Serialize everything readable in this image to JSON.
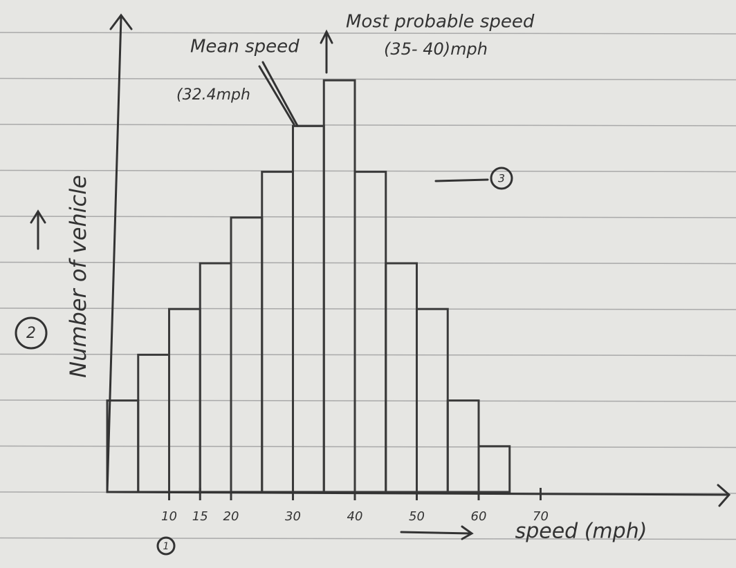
{
  "chart_data": {
    "type": "histogram",
    "x_label": "speed (mph)",
    "y_label": "Number of vehicle",
    "bins": [
      0,
      5,
      10,
      15,
      20,
      25,
      30,
      35,
      40,
      45,
      50,
      55,
      60,
      65
    ],
    "values": [
      2,
      3,
      4,
      5,
      6,
      7,
      8,
      9,
      7,
      5,
      4,
      2,
      1
    ],
    "color": "#3a3a3a",
    "xlim": [
      0,
      100
    ],
    "ylim": [
      0,
      10
    ],
    "xticks": [
      10,
      15,
      20,
      30,
      40,
      50,
      60,
      70
    ],
    "annotations": {
      "most_probable": "Most probable speed",
      "most_probable_range": "(35- 40)mph",
      "mean": "Mean speed",
      "mean_value": "(32.4mph",
      "circle_1": "1",
      "circle_2": "2",
      "circle_3": "3"
    }
  }
}
